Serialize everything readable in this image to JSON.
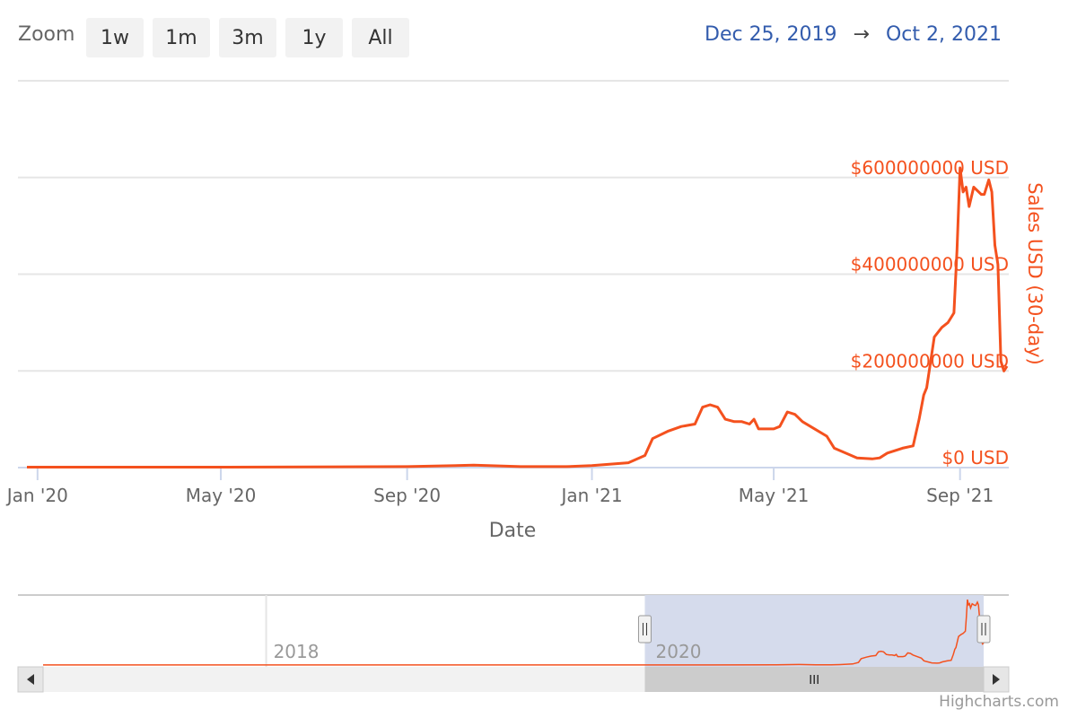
{
  "zoom": {
    "label": "Zoom",
    "buttons": [
      "1w",
      "1m",
      "3m",
      "1y",
      "All"
    ]
  },
  "range": {
    "from": "Dec 25, 2019",
    "arrow": "→",
    "to": "Oct 2, 2021"
  },
  "credit": "Highcharts.com",
  "colors": {
    "series": "#f4511e",
    "range_text": "#335cad",
    "navigator_mask": "#d3d9eb"
  },
  "chart_data": {
    "type": "line",
    "title": "",
    "xlabel": "Date",
    "ylabel": "Sales USD (30-day)",
    "xlim": [
      "2019-12-25",
      "2021-10-02"
    ],
    "ylim": [
      0,
      800000000
    ],
    "yticks": [
      {
        "value": 0,
        "label": "$0 USD"
      },
      {
        "value": 200000000,
        "label": "$200000000 USD"
      },
      {
        "value": 400000000,
        "label": "$400000000 USD"
      },
      {
        "value": 600000000,
        "label": "$600000000 USD"
      }
    ],
    "xticks": [
      {
        "date": "2020-01-01",
        "label": "Jan '20"
      },
      {
        "date": "2020-05-01",
        "label": "May '20"
      },
      {
        "date": "2020-09-01",
        "label": "Sep '20"
      },
      {
        "date": "2021-01-01",
        "label": "Jan '21"
      },
      {
        "date": "2021-05-01",
        "label": "May '21"
      },
      {
        "date": "2021-09-01",
        "label": "Sep '21"
      }
    ],
    "grid": true,
    "legend": false,
    "series": [
      {
        "x": [
          "2019-12-25",
          "2020-05-01",
          "2020-09-01",
          "2020-10-15",
          "2020-11-15",
          "2020-12-15",
          "2021-01-01",
          "2021-01-25",
          "2021-02-05",
          "2021-02-10",
          "2021-02-20",
          "2021-03-01",
          "2021-03-10",
          "2021-03-15",
          "2021-03-20",
          "2021-03-25",
          "2021-03-30",
          "2021-04-05",
          "2021-04-10",
          "2021-04-15",
          "2021-04-18",
          "2021-04-21",
          "2021-04-25",
          "2021-05-01",
          "2021-05-05",
          "2021-05-10",
          "2021-05-15",
          "2021-05-20",
          "2021-05-28",
          "2021-06-05",
          "2021-06-10",
          "2021-06-25",
          "2021-07-05",
          "2021-07-10",
          "2021-07-15",
          "2021-07-25",
          "2021-08-01",
          "2021-08-05",
          "2021-08-08",
          "2021-08-10",
          "2021-08-15",
          "2021-08-20",
          "2021-08-24",
          "2021-08-26",
          "2021-08-28",
          "2021-08-30",
          "2021-09-01",
          "2021-09-03",
          "2021-09-05",
          "2021-09-07",
          "2021-09-10",
          "2021-09-15",
          "2021-09-17",
          "2021-09-20",
          "2021-09-22",
          "2021-09-24",
          "2021-09-26",
          "2021-09-28",
          "2021-09-30",
          "2021-10-02"
        ],
        "values": [
          1000000,
          1000000,
          2000000,
          5000000,
          2000000,
          2000000,
          4000000,
          10000000,
          25000000,
          60000000,
          75000000,
          85000000,
          90000000,
          125000000,
          130000000,
          125000000,
          100000000,
          95000000,
          95000000,
          90000000,
          100000000,
          80000000,
          80000000,
          80000000,
          85000000,
          115000000,
          110000000,
          95000000,
          80000000,
          65000000,
          40000000,
          20000000,
          18000000,
          20000000,
          30000000,
          40000000,
          45000000,
          100000000,
          150000000,
          165000000,
          270000000,
          290000000,
          300000000,
          310000000,
          320000000,
          450000000,
          620000000,
          570000000,
          580000000,
          540000000,
          580000000,
          565000000,
          565000000,
          595000000,
          570000000,
          460000000,
          420000000,
          220000000,
          200000000,
          210000000
        ]
      }
    ],
    "navigator": {
      "labels": [
        {
          "date": "2018-01-01",
          "label": "2018"
        },
        {
          "date": "2020-01-01",
          "label": "2020"
        }
      ],
      "start": "2016-11-01",
      "end": "2021-10-02",
      "selected_from": "2019-12-25",
      "selected_to": "2021-10-02"
    }
  }
}
